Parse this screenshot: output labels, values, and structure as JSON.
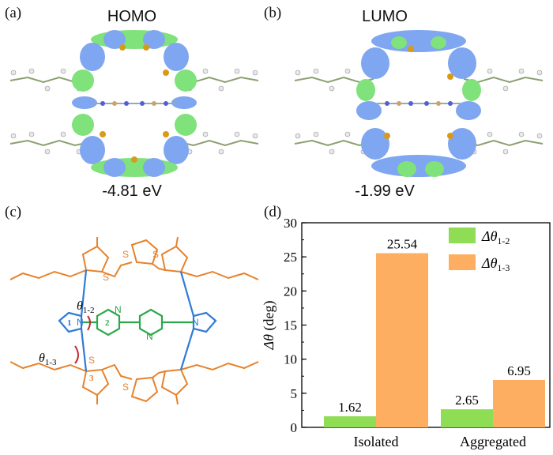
{
  "panels": {
    "a": {
      "label": "(a)",
      "title": "HOMO",
      "energy": "-4.81 eV"
    },
    "b": {
      "label": "(b)",
      "title": "LUMO",
      "energy": "-1.99 eV"
    },
    "c": {
      "label": "(c)",
      "ring_numbers": [
        "1",
        "2",
        "3"
      ],
      "atom_labels": {
        "N": "N",
        "S": "S"
      },
      "angle_labels": [
        {
          "theta": "θ",
          "sub": "1-2"
        },
        {
          "theta": "θ",
          "sub": "1-3"
        }
      ]
    },
    "d": {
      "label": "(d)"
    }
  },
  "colors": {
    "green": "#8fdc55",
    "orange": "#fdae61",
    "blue_ring": "#2f7bd6",
    "green_ring": "#2aa84a",
    "orange_ring": "#e6822c",
    "arrow_red": "#c0282d",
    "iso_blue": "#7fa6f0",
    "iso_green": "#7fe27a"
  },
  "chart_data": {
    "type": "bar",
    "categories": [
      "Isolated",
      "Aggregated"
    ],
    "series": [
      {
        "name": "Δθ1-2",
        "name_main": "Δθ",
        "name_sub": "1-2",
        "values": [
          1.62,
          2.65
        ],
        "labels": [
          "1.62",
          "2.65"
        ],
        "color": "#8fdc55"
      },
      {
        "name": "Δθ1-3",
        "name_main": "Δθ",
        "name_sub": "1-3",
        "values": [
          25.54,
          6.95
        ],
        "labels": [
          "25.54",
          "6.95"
        ],
        "color": "#fdae61"
      }
    ],
    "ylabel_main": "Δθ",
    "ylabel_unit": "(deg)",
    "ylim": [
      0,
      30
    ],
    "yticks": [
      0,
      5,
      10,
      15,
      20,
      25,
      30
    ],
    "legend_position": "top-right",
    "grid": false
  }
}
